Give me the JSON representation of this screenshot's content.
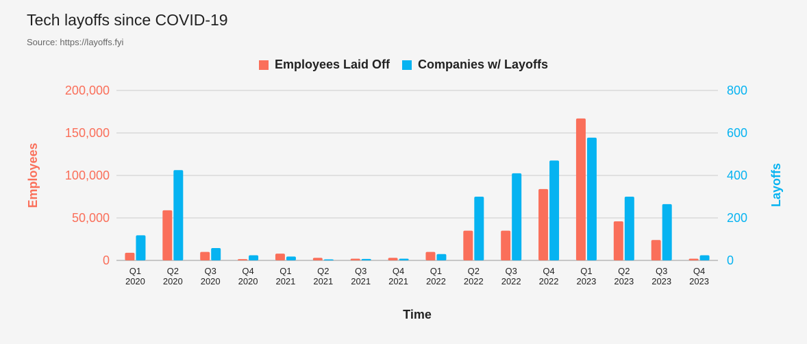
{
  "header": {
    "title": "Tech layoffs since COVID-19",
    "subtitle": "Source: https://layoffs.fyi"
  },
  "colors": {
    "employees": "#fa6f5a",
    "companies": "#06b3f1",
    "grid": "#cccccc",
    "text": "#222222"
  },
  "chart_data": {
    "type": "bar",
    "title": "Tech layoffs since COVID-19",
    "subtitle": "Source: https://layoffs.fyi",
    "xlabel": "Time",
    "ylabel": "Employees",
    "y2label": "Layoffs",
    "ylim": [
      0,
      200000
    ],
    "y2lim": [
      0,
      800
    ],
    "yticks": [
      "0",
      "50,000",
      "100,000",
      "150,000",
      "200,000"
    ],
    "y2ticks": [
      "0",
      "200",
      "400",
      "600",
      "800"
    ],
    "grid": true,
    "legend_position": "top-center",
    "categories": [
      [
        "Q1",
        "2020"
      ],
      [
        "Q2",
        "2020"
      ],
      [
        "Q3",
        "2020"
      ],
      [
        "Q4",
        "2020"
      ],
      [
        "Q1",
        "2021"
      ],
      [
        "Q2",
        "2021"
      ],
      [
        "Q3",
        "2021"
      ],
      [
        "Q4",
        "2021"
      ],
      [
        "Q1",
        "2022"
      ],
      [
        "Q2",
        "2022"
      ],
      [
        "Q3",
        "2022"
      ],
      [
        "Q4",
        "2022"
      ],
      [
        "Q1",
        "2023"
      ],
      [
        "Q2",
        "2023"
      ],
      [
        "Q3",
        "2023"
      ],
      [
        "Q4",
        "2023"
      ]
    ],
    "series": [
      {
        "name": "Employees Laid Off",
        "axis": "left",
        "values": [
          9000,
          59000,
          10000,
          1500,
          8000,
          3000,
          2000,
          3000,
          10000,
          35000,
          35000,
          84000,
          167000,
          46000,
          24000,
          2000
        ]
      },
      {
        "name": "Companies w/ Layoffs",
        "axis": "right",
        "values": [
          118,
          425,
          58,
          24,
          18,
          5,
          7,
          8,
          30,
          300,
          410,
          470,
          578,
          300,
          265,
          24
        ]
      }
    ]
  }
}
